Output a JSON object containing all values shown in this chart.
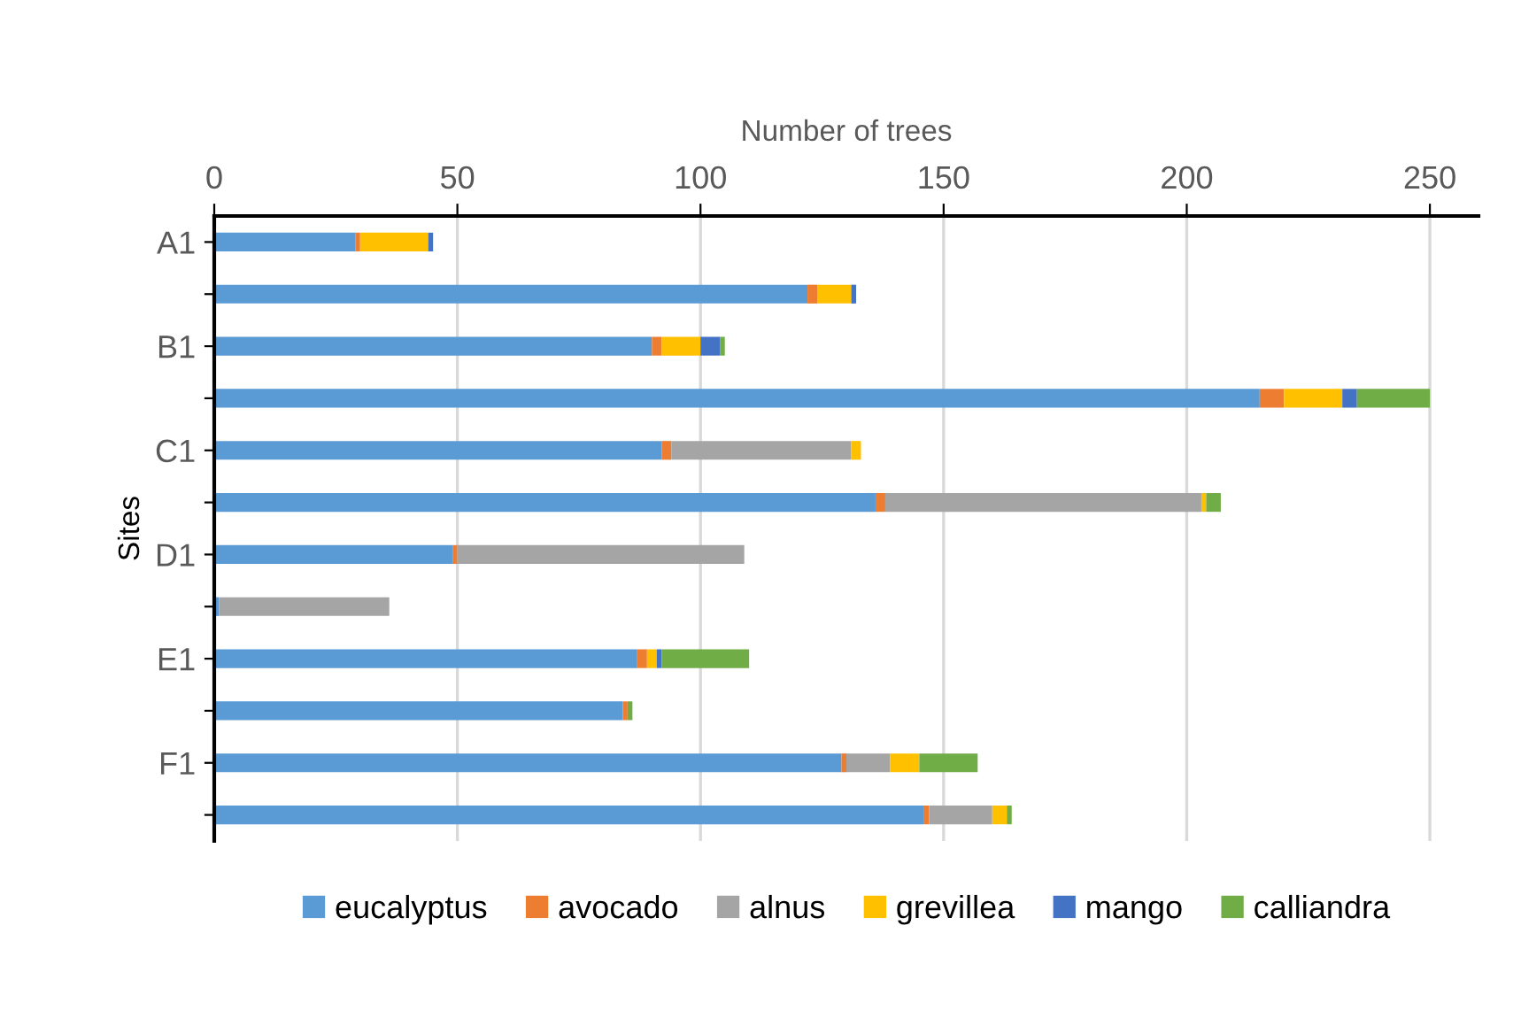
{
  "chart_data": {
    "type": "bar",
    "orientation": "horizontal",
    "stacked": true,
    "xlabel": "Number of trees",
    "ylabel": "Sites",
    "categories": [
      "A1",
      null,
      "B1",
      null,
      "C1",
      null,
      "D1",
      null,
      "E1",
      null,
      "F1",
      null
    ],
    "series": [
      {
        "name": "eucalyptus",
        "color": "#5b9bd5",
        "values": [
          29,
          122,
          90,
          215,
          92,
          136,
          49,
          1,
          87,
          84,
          129,
          146
        ]
      },
      {
        "name": "avocado",
        "color": "#ed7d31",
        "values": [
          1,
          2,
          2,
          5,
          2,
          2,
          1,
          0,
          2,
          1,
          1,
          1
        ]
      },
      {
        "name": "alnus",
        "color": "#a5a5a5",
        "values": [
          0,
          0,
          0,
          0,
          37,
          65,
          59,
          35,
          0,
          0,
          9,
          13
        ]
      },
      {
        "name": "grevillea",
        "color": "#ffc000",
        "values": [
          14,
          7,
          8,
          12,
          2,
          1,
          0,
          0,
          2,
          0,
          6,
          3
        ]
      },
      {
        "name": "mango",
        "color": "#4472c4",
        "values": [
          1,
          1,
          4,
          3,
          0,
          0,
          0,
          0,
          1,
          0,
          0,
          0
        ]
      },
      {
        "name": "calliandra",
        "color": "#70ad47",
        "values": [
          0,
          0,
          1,
          15,
          0,
          3,
          0,
          0,
          18,
          1,
          12,
          1
        ]
      }
    ],
    "xlim": [
      0,
      260
    ],
    "xticks": [
      0,
      50,
      100,
      150,
      200,
      250
    ],
    "grid": "x",
    "legend": "bottom"
  }
}
